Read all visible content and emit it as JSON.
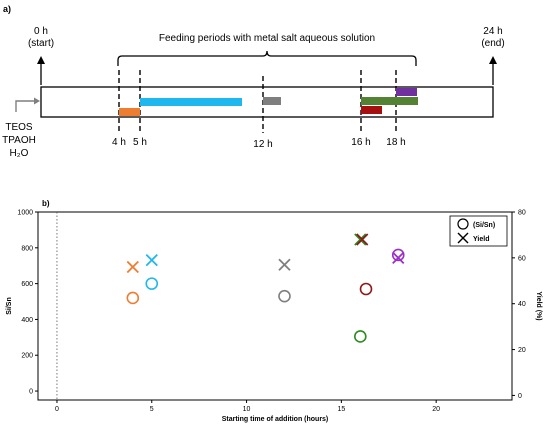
{
  "panel_a": {
    "label": "a)",
    "start_time": "0 h",
    "start_note": "(start)",
    "end_time": "24 h",
    "end_note": "(end)",
    "feeding_label": "Feeding periods with metal salt aqueous solution",
    "reagents": [
      "TEOS",
      "TPAOH",
      "H₂O"
    ],
    "markers": [
      {
        "label": "4 h",
        "hour": 4
      },
      {
        "label": "5 h",
        "hour": 5
      },
      {
        "label": "12 h",
        "hour": 12
      },
      {
        "label": "16 h",
        "hour": 16
      },
      {
        "label": "18 h",
        "hour": 18
      }
    ],
    "colors": {
      "orange": "#ed7d31",
      "blue": "#1fb8ee",
      "gray": "#7f7f7f",
      "green": "#548235",
      "darkred": "#a50f0f",
      "purple": "#7030a0"
    }
  },
  "chart_data": {
    "type": "scatter",
    "panel_label": "b)",
    "xlabel": "Starting time of addition (hours)",
    "ylabel": "Si/Sn",
    "y2label": "Yield (%)",
    "xlim": [
      -1,
      24
    ],
    "ylim": [
      -50,
      1000
    ],
    "y2lim": [
      -2,
      80
    ],
    "x_ticks": [
      0,
      5,
      10,
      15,
      20
    ],
    "y_ticks": [
      0,
      200,
      400,
      600,
      800,
      1000
    ],
    "y2_ticks": [
      0,
      20,
      40,
      60,
      80
    ],
    "legend": {
      "position": "top-right",
      "entries": [
        "(Si/Sn)",
        "Yield"
      ]
    },
    "series": [
      {
        "name": "(Si/Sn)",
        "marker": "circle",
        "axis": "left",
        "points": [
          {
            "x": 4,
            "y": 520,
            "color": "#ed7d31"
          },
          {
            "x": 5,
            "y": 600,
            "color": "#1fb8ee"
          },
          {
            "x": 12,
            "y": 530,
            "color": "#7f7f7f"
          },
          {
            "x": 16,
            "y": 305,
            "color": "#2e8b1f"
          },
          {
            "x": 16.3,
            "y": 570,
            "color": "#8b1a1a"
          },
          {
            "x": 18,
            "y": 760,
            "color": "#9b30c8"
          }
        ]
      },
      {
        "name": "Yield",
        "marker": "x",
        "axis": "right",
        "points": [
          {
            "x": 4,
            "y": 56,
            "color": "#ed7d31"
          },
          {
            "x": 5,
            "y": 59,
            "color": "#1fb8ee"
          },
          {
            "x": 12,
            "y": 57,
            "color": "#7f7f7f"
          },
          {
            "x": 16,
            "y": 68,
            "color": "#2e8b1f"
          },
          {
            "x": 16.1,
            "y": 68,
            "color": "#8b1a1a"
          },
          {
            "x": 18,
            "y": 60,
            "color": "#9b30c8"
          }
        ]
      }
    ],
    "reference_line": {
      "x": 0,
      "style": "dotted"
    }
  }
}
